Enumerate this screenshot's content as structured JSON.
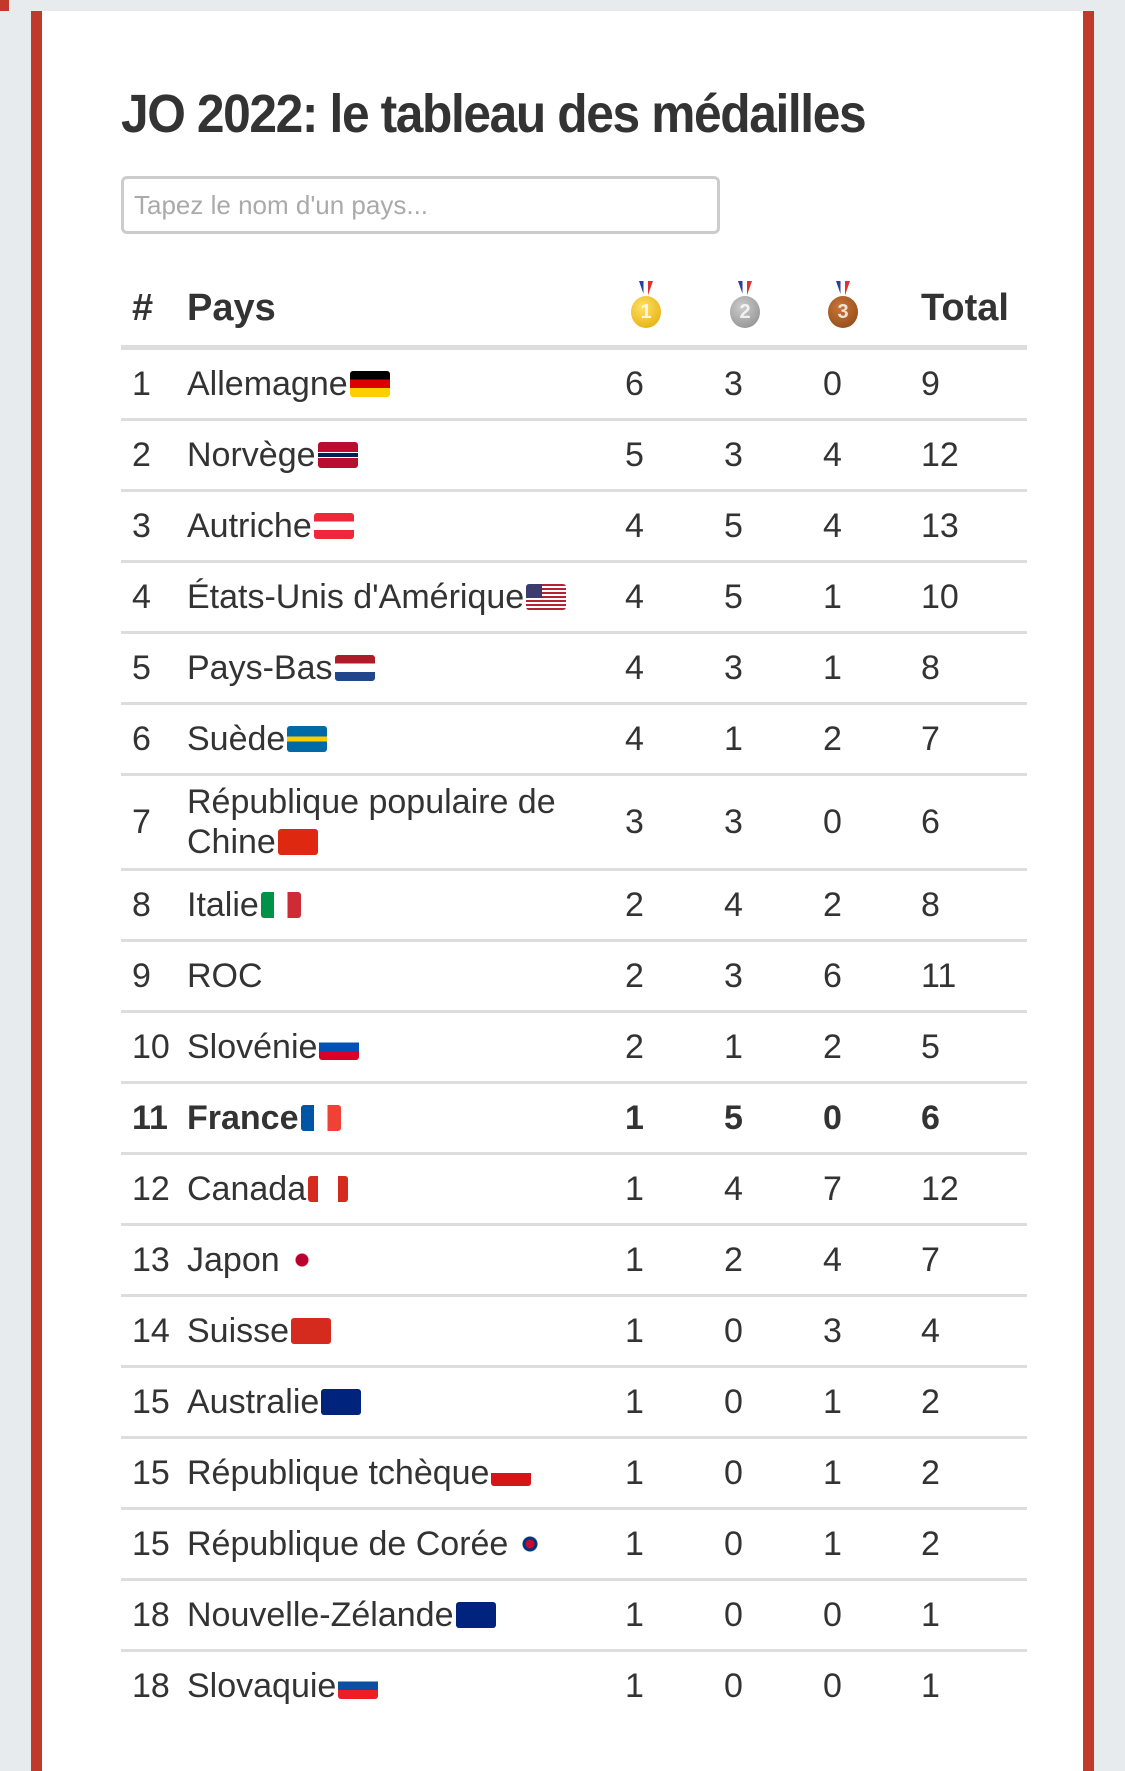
{
  "title": "JO 2022: le tableau des médailles",
  "search": {
    "placeholder": "Tapez le nom d'un pays..."
  },
  "header": {
    "rank": "#",
    "country": "Pays",
    "gold_icon": "gold-medal-1",
    "silver_icon": "silver-medal-2",
    "bronze_icon": "bronze-medal-3",
    "gold_num": "1",
    "silver_num": "2",
    "bronze_num": "3",
    "total": "Total"
  },
  "colors": {
    "accent": "#c0392b",
    "gold": "#e8b923",
    "silver": "#9a9a9a",
    "bronze": "#a0522d"
  },
  "rows": [
    {
      "rank": "1",
      "country": "Allemagne",
      "flag": "flag-germany",
      "gold": "6",
      "silver": "3",
      "bronze": "0",
      "total": "9"
    },
    {
      "rank": "2",
      "country": "Norvège",
      "flag": "flag-norway",
      "gold": "5",
      "silver": "3",
      "bronze": "4",
      "total": "12"
    },
    {
      "rank": "3",
      "country": "Autriche",
      "flag": "flag-austria",
      "gold": "4",
      "silver": "5",
      "bronze": "4",
      "total": "13"
    },
    {
      "rank": "4",
      "country": "États-Unis d'Amérique",
      "flag": "flag-usa",
      "gold": "4",
      "silver": "5",
      "bronze": "1",
      "total": "10"
    },
    {
      "rank": "5",
      "country": "Pays-Bas",
      "flag": "flag-netherlands",
      "gold": "4",
      "silver": "3",
      "bronze": "1",
      "total": "8"
    },
    {
      "rank": "6",
      "country": "Suède",
      "flag": "flag-sweden",
      "gold": "4",
      "silver": "1",
      "bronze": "2",
      "total": "7"
    },
    {
      "rank": "7",
      "country": "République populaire de Chine",
      "flag": "flag-china",
      "gold": "3",
      "silver": "3",
      "bronze": "0",
      "total": "6"
    },
    {
      "rank": "8",
      "country": "Italie",
      "flag": "flag-italy",
      "gold": "2",
      "silver": "4",
      "bronze": "2",
      "total": "8"
    },
    {
      "rank": "9",
      "country": "ROC",
      "flag": "",
      "gold": "2",
      "silver": "3",
      "bronze": "6",
      "total": "11"
    },
    {
      "rank": "10",
      "country": "Slovénie",
      "flag": "flag-slovenia",
      "gold": "2",
      "silver": "1",
      "bronze": "2",
      "total": "5"
    },
    {
      "rank": "11",
      "country": "France",
      "flag": "flag-france",
      "gold": "1",
      "silver": "5",
      "bronze": "0",
      "total": "6",
      "highlight": true
    },
    {
      "rank": "12",
      "country": "Canada",
      "flag": "flag-canada",
      "gold": "1",
      "silver": "4",
      "bronze": "7",
      "total": "12"
    },
    {
      "rank": "13",
      "country": "Japon",
      "flag": "flag-japan",
      "gold": "1",
      "silver": "2",
      "bronze": "4",
      "total": "7"
    },
    {
      "rank": "14",
      "country": "Suisse",
      "flag": "flag-switzerland",
      "gold": "1",
      "silver": "0",
      "bronze": "3",
      "total": "4"
    },
    {
      "rank": "15",
      "country": "Australie",
      "flag": "flag-australia",
      "gold": "1",
      "silver": "0",
      "bronze": "1",
      "total": "2"
    },
    {
      "rank": "15",
      "country": "République tchèque",
      "flag": "flag-czech-republic",
      "gold": "1",
      "silver": "0",
      "bronze": "1",
      "total": "2"
    },
    {
      "rank": "15",
      "country": "République de Corée",
      "flag": "flag-south-korea",
      "gold": "1",
      "silver": "0",
      "bronze": "1",
      "total": "2"
    },
    {
      "rank": "18",
      "country": "Nouvelle-Zélande",
      "flag": "flag-new-zealand",
      "gold": "1",
      "silver": "0",
      "bronze": "0",
      "total": "1"
    },
    {
      "rank": "18",
      "country": "Slovaquie",
      "flag": "flag-slovakia",
      "gold": "1",
      "silver": "0",
      "bronze": "0",
      "total": "1"
    }
  ]
}
